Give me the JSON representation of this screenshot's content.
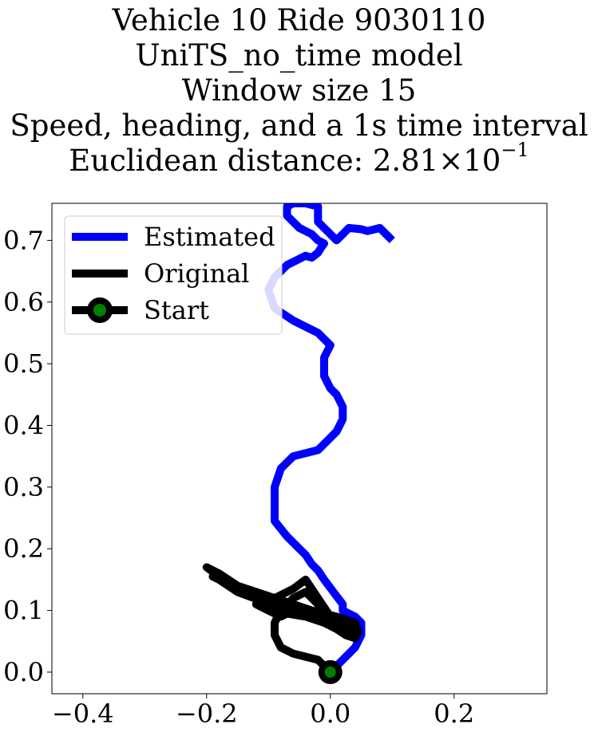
{
  "title_lines": [
    "Vehicle 10 Ride 9030110",
    "UniTS_no_time model",
    "Window size 15",
    "Speed, heading, and a 1s time interval"
  ],
  "distance_line": {
    "prefix": "Euclidean distance: ",
    "mantissa": "2.81",
    "times": "×",
    "base": "10",
    "exponent": "−1"
  },
  "colors": {
    "estimated": "#0000ff",
    "original": "#000000",
    "start_fill": "#008000"
  },
  "chart_data": {
    "type": "line",
    "xlim": [
      -0.45,
      0.35
    ],
    "ylim": [
      -0.035,
      0.76
    ],
    "x_ticks": [
      -0.4,
      -0.2,
      0.0,
      0.2
    ],
    "x_tick_labels": [
      "−0.4",
      "−0.2",
      "0.0",
      "0.2"
    ],
    "y_ticks": [
      0.0,
      0.1,
      0.2,
      0.3,
      0.4,
      0.5,
      0.6,
      0.7
    ],
    "y_tick_labels": [
      "0.0",
      "0.1",
      "0.2",
      "0.3",
      "0.4",
      "0.5",
      "0.6",
      "0.7"
    ],
    "grid": false,
    "legend_position": "upper-left",
    "series": [
      {
        "name": "Estimated",
        "x": [
          0.0,
          0.02,
          0.04,
          0.05,
          0.05,
          0.04,
          0.02,
          0.02,
          0.005,
          -0.01,
          -0.02,
          -0.03,
          -0.04,
          -0.05,
          -0.07,
          -0.09,
          -0.09,
          -0.09,
          -0.08,
          -0.06,
          -0.04,
          -0.02,
          0.0,
          0.01,
          0.02,
          0.02,
          0.01,
          0.0,
          -0.01,
          -0.01,
          0.0,
          -0.02,
          -0.06,
          -0.09,
          -0.1,
          -0.09,
          -0.07,
          -0.05,
          -0.04,
          -0.03,
          -0.02,
          -0.015,
          -0.01,
          -0.02,
          -0.03,
          -0.04,
          -0.05,
          -0.07,
          -0.07,
          -0.06,
          -0.04,
          -0.02,
          -0.02,
          -0.02,
          -0.02,
          -0.01,
          0.0,
          0.01,
          0.02,
          0.03,
          0.05,
          0.06,
          0.08,
          0.09,
          0.1
        ],
        "y": [
          0.0,
          0.02,
          0.04,
          0.06,
          0.08,
          0.09,
          0.1,
          0.11,
          0.13,
          0.15,
          0.165,
          0.175,
          0.19,
          0.2,
          0.22,
          0.245,
          0.27,
          0.3,
          0.33,
          0.35,
          0.355,
          0.36,
          0.38,
          0.39,
          0.41,
          0.43,
          0.45,
          0.46,
          0.48,
          0.51,
          0.53,
          0.55,
          0.57,
          0.59,
          0.62,
          0.64,
          0.66,
          0.67,
          0.675,
          0.672,
          0.68,
          0.688,
          0.695,
          0.7,
          0.71,
          0.715,
          0.72,
          0.74,
          0.755,
          0.76,
          0.76,
          0.755,
          0.75,
          0.74,
          0.73,
          0.72,
          0.71,
          0.7,
          0.71,
          0.72,
          0.718,
          0.715,
          0.72,
          0.71,
          0.7
        ]
      },
      {
        "name": "Original",
        "x": [
          0.0,
          -0.02,
          -0.04,
          -0.06,
          -0.08,
          -0.09,
          -0.09,
          -0.08,
          -0.06,
          -0.04,
          -0.01,
          0.01,
          0.025,
          0.04,
          0.045,
          0.04,
          0.01,
          -0.03,
          -0.06,
          -0.09,
          -0.12,
          -0.15,
          -0.18,
          -0.2,
          -0.18,
          -0.14,
          -0.1,
          -0.07,
          -0.04,
          -0.02,
          0.0,
          0.02,
          0.035,
          0.03,
          0.01,
          -0.01,
          -0.04,
          -0.07,
          -0.1,
          -0.13,
          -0.16,
          -0.19,
          -0.18,
          -0.15,
          -0.11,
          -0.08,
          -0.06,
          -0.08,
          -0.1,
          -0.12,
          -0.09,
          -0.06,
          -0.04,
          -0.02,
          0.0,
          0.02,
          0.04,
          0.03,
          -0.01,
          -0.04
        ],
        "y": [
          0.0,
          0.02,
          0.025,
          0.03,
          0.04,
          0.06,
          0.08,
          0.1,
          0.12,
          0.13,
          0.1,
          0.07,
          0.06,
          0.055,
          0.065,
          0.08,
          0.09,
          0.1,
          0.11,
          0.12,
          0.13,
          0.14,
          0.16,
          0.17,
          0.155,
          0.13,
          0.11,
          0.095,
          0.09,
          0.085,
          0.08,
          0.075,
          0.07,
          0.065,
          0.07,
          0.08,
          0.09,
          0.1,
          0.11,
          0.125,
          0.14,
          0.155,
          0.15,
          0.13,
          0.115,
          0.11,
          0.1,
          0.09,
          0.1,
          0.11,
          0.12,
          0.135,
          0.15,
          0.12,
          0.09,
          0.08,
          0.07,
          0.065,
          0.08,
          0.1
        ]
      }
    ],
    "start_point": {
      "name": "Start",
      "x": 0.0,
      "y": 0.0
    }
  }
}
